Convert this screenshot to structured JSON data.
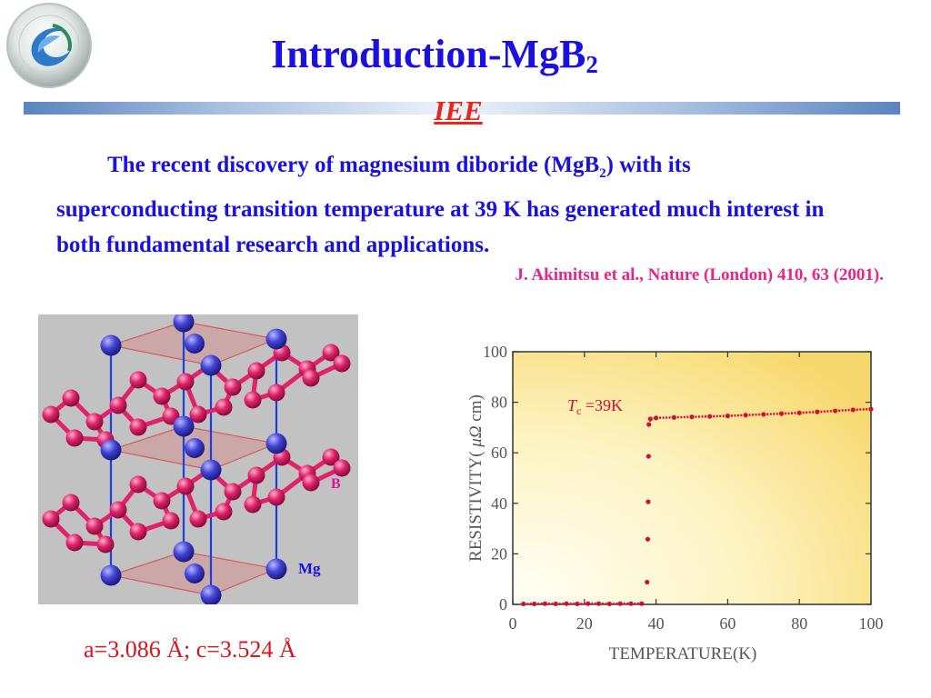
{
  "header": {
    "title_main": "Introduction-MgB",
    "title_sub": "2",
    "subtitle": "IEE"
  },
  "intro": {
    "text_a": "The recent discovery of magnesium diboride (MgB",
    "sub": "2",
    "text_b": ") with its superconducting transition temperature at 39 K has generated much interest in both fundamental research and applications."
  },
  "citation": "J. Akimitsu et al., Nature (London) 410, 63 (2001).",
  "crystal": {
    "label_b": "B",
    "label_mg": "Mg",
    "colors": {
      "boron": "#e0226a",
      "magnesium": "#3a3ad0",
      "bond": "#1c3fe0",
      "plane": "#d98080"
    }
  },
  "lattice_constants": "a=3.086 Å; c=3.524 Å",
  "chart_data": {
    "type": "scatter",
    "x_label": "TEMPERATURE(K)",
    "y_label_pre": "RESISTIVITY( ",
    "y_label_unit": "μΩ",
    "y_label_post": " cm)",
    "annotation_T": "T",
    "annotation_sub": "c",
    "annotation_rest": " =39K",
    "xlim": [
      0,
      100
    ],
    "ylim": [
      0,
      100
    ],
    "x_ticks": [
      "0",
      "20",
      "40",
      "60",
      "80",
      "100"
    ],
    "y_ticks": [
      "0",
      "20",
      "40",
      "60",
      "80",
      "100"
    ],
    "series": [
      {
        "points": [
          [
            3,
            0.2
          ],
          [
            6,
            0.2
          ],
          [
            9,
            0.3
          ],
          [
            12,
            0.2
          ],
          [
            15,
            0.3
          ],
          [
            18,
            0.2
          ],
          [
            21,
            0.3
          ],
          [
            24,
            0.3
          ],
          [
            27,
            0.2
          ],
          [
            30,
            0.3
          ],
          [
            33,
            0.3
          ],
          [
            36,
            0.3
          ],
          [
            37.5,
            8.8
          ],
          [
            37.7,
            25.8
          ],
          [
            37.8,
            40.6
          ],
          [
            37.9,
            58.6
          ],
          [
            38.0,
            71.2
          ],
          [
            38.4,
            73.4
          ],
          [
            40,
            73.8
          ],
          [
            45,
            74.0
          ],
          [
            50,
            74.2
          ],
          [
            55,
            74.4
          ],
          [
            60,
            74.6
          ],
          [
            65,
            74.9
          ],
          [
            70,
            75.2
          ],
          [
            75,
            75.5
          ],
          [
            80,
            75.8
          ],
          [
            85,
            76.2
          ],
          [
            90,
            76.6
          ],
          [
            95,
            77.0
          ],
          [
            100,
            77.3
          ]
        ]
      }
    ],
    "colors": {
      "markers": "#d10f33",
      "background_light": "#fffef2",
      "background_dark": "#f7d86c"
    }
  }
}
